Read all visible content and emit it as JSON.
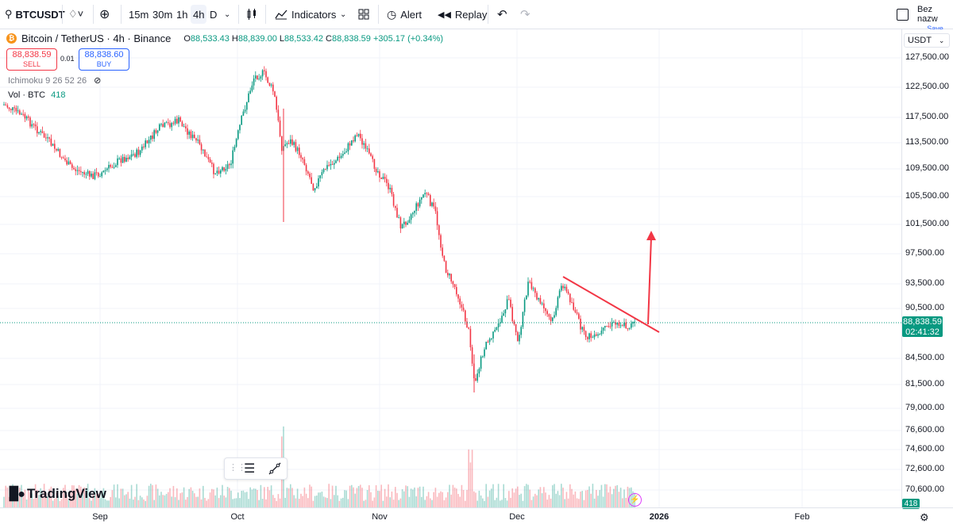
{
  "toolbar": {
    "symbol": "BTCUSDT",
    "intervals": [
      "15m",
      "30m",
      "1h",
      "4h",
      "D"
    ],
    "indicators_label": "Indicators",
    "alert_label": "Alert",
    "replay_label": "Replay",
    "layout_name": "Bez nazw",
    "save_label": "Save"
  },
  "legend": {
    "title": "Bitcoin / TetherUS · 4h · Binance",
    "open": "88,533.43",
    "high": "88,839.00",
    "low": "88,533.42",
    "close": "88,838.59",
    "change": "+305.17 (+0.34%)",
    "sell_price": "88,838.59",
    "sell_label": "SELL",
    "spread": "0.01",
    "buy_price": "88,838.60",
    "buy_label": "BUY",
    "ichimoku": "Ichimoku 9 26 52 26",
    "vol_label": "Vol · BTC",
    "vol_value": "418"
  },
  "price_axis": {
    "currency": "USDT",
    "ticks": [
      "127,500.00",
      "122,500.00",
      "117,500.00",
      "113,500.00",
      "109,500.00",
      "105,500.00",
      "101,500.00",
      "97,500.00",
      "93,500.00",
      "90,500.00",
      "84,500.00",
      "81,500.00",
      "79,000.00",
      "76,600.00",
      "74,600.00",
      "72,600.00",
      "70,600.00"
    ],
    "current_price": "88,838.59",
    "countdown": "02:41:32",
    "volume_tag": "418"
  },
  "time_axis": {
    "labels": [
      "Sep",
      "Oct",
      "Nov",
      "Dec",
      "2026",
      "Feb"
    ]
  },
  "brand": {
    "name": "TradingView"
  },
  "colors": {
    "up": "#089981",
    "down": "#f23645",
    "drawing": "#f23645",
    "accent": "#2962ff"
  }
}
